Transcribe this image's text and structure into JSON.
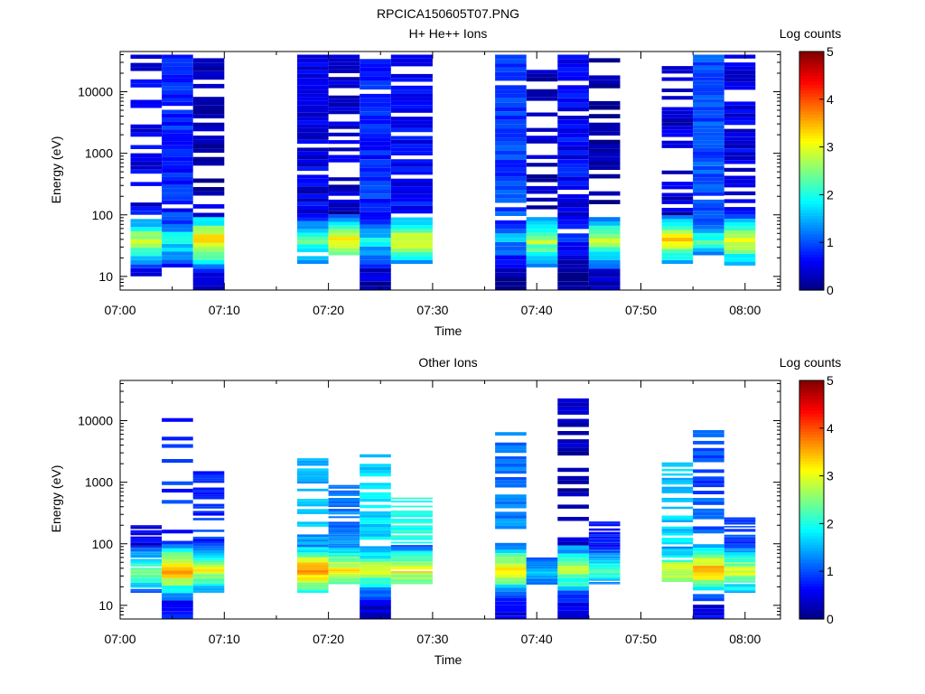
{
  "figure_title": "RPCICA150605T07.PNG",
  "chart_data": [
    {
      "type": "heatmap",
      "title": "H+ He++ Ions",
      "xlabel": "Time",
      "ylabel": "Energy (eV)",
      "x_ticks": [
        "07:00",
        "07:10",
        "07:20",
        "07:30",
        "07:40",
        "07:50",
        "08:00"
      ],
      "y_ticks": [
        "10",
        "100",
        "1000",
        "10000"
      ],
      "y_scale": "log",
      "ylim": [
        6,
        45000
      ],
      "colorbar": {
        "label": "Log counts",
        "ticks": [
          "0",
          "1",
          "2",
          "3",
          "4",
          "5"
        ],
        "range": [
          0,
          5
        ]
      },
      "sweeps": [
        {
          "start": "07:01",
          "end": "07:04",
          "emin": 10,
          "emax": 40000,
          "low_peak": 3.0,
          "high_level": 0.5,
          "fill": 0.6
        },
        {
          "start": "07:04",
          "end": "07:07",
          "emin": 14,
          "emax": 40000,
          "low_peak": 2.0,
          "high_level": 0.8,
          "fill": 0.95
        },
        {
          "start": "07:07",
          "end": "07:10",
          "emin": 6,
          "emax": 35000,
          "low_peak": 3.6,
          "high_level": 0.3,
          "fill": 0.55
        },
        {
          "start": "07:17",
          "end": "07:20",
          "emin": 16,
          "emax": 40000,
          "low_peak": 2.4,
          "high_level": 0.5,
          "fill": 0.85
        },
        {
          "start": "07:20",
          "end": "07:23",
          "emin": 22,
          "emax": 40000,
          "low_peak": 3.4,
          "high_level": 0.4,
          "fill": 0.7
        },
        {
          "start": "07:23",
          "end": "07:26",
          "emin": 6,
          "emax": 40000,
          "low_peak": 1.8,
          "high_level": 0.8,
          "fill": 0.95
        },
        {
          "start": "07:26",
          "end": "07:30",
          "emin": 16,
          "emax": 40000,
          "low_peak": 3.2,
          "high_level": 0.6,
          "fill": 0.8
        },
        {
          "start": "07:36",
          "end": "07:39",
          "emin": 6,
          "emax": 40000,
          "low_peak": 1.5,
          "high_level": 0.9,
          "fill": 0.95
        },
        {
          "start": "07:39",
          "end": "07:42",
          "emin": 14,
          "emax": 35000,
          "low_peak": 2.8,
          "high_level": 0.3,
          "fill": 0.55
        },
        {
          "start": "07:42",
          "end": "07:45",
          "emin": 6,
          "emax": 40000,
          "low_peak": 0.8,
          "high_level": 0.6,
          "fill": 0.9
        },
        {
          "start": "07:45",
          "end": "07:48",
          "emin": 6,
          "emax": 35000,
          "low_peak": 2.8,
          "high_level": 0.2,
          "fill": 0.5
        },
        {
          "start": "07:52",
          "end": "07:55",
          "emin": 16,
          "emax": 30000,
          "low_peak": 3.4,
          "high_level": 0.4,
          "fill": 0.6
        },
        {
          "start": "07:55",
          "end": "07:58",
          "emin": 22,
          "emax": 40000,
          "low_peak": 2.2,
          "high_level": 1.0,
          "fill": 0.95
        },
        {
          "start": "07:58",
          "end": "08:01",
          "emin": 15,
          "emax": 40000,
          "low_peak": 3.2,
          "high_level": 0.5,
          "fill": 0.75
        }
      ]
    },
    {
      "type": "heatmap",
      "title": "Other Ions",
      "xlabel": "Time",
      "ylabel": "Energy (eV)",
      "x_ticks": [
        "07:00",
        "07:10",
        "07:20",
        "07:30",
        "07:40",
        "07:50",
        "08:00"
      ],
      "y_ticks": [
        "10",
        "100",
        "1000",
        "10000"
      ],
      "y_scale": "log",
      "ylim": [
        6,
        45000
      ],
      "colorbar": {
        "label": "Log counts",
        "ticks": [
          "0",
          "1",
          "2",
          "3",
          "4",
          "5"
        ],
        "range": [
          0,
          5
        ]
      },
      "sweeps": [
        {
          "start": "07:01",
          "end": "07:04",
          "emin": 16,
          "emax": 200,
          "low_peak": 2.6,
          "high_level": 0.5,
          "fill": 0.8
        },
        {
          "start": "07:04",
          "end": "07:07",
          "emin": 6,
          "emax": 11000,
          "low_peak": 3.8,
          "high_level": 0.8,
          "fill": 0.45
        },
        {
          "start": "07:07",
          "end": "07:10",
          "emin": 16,
          "emax": 1800,
          "low_peak": 3.0,
          "high_level": 0.8,
          "fill": 0.6
        },
        {
          "start": "07:17",
          "end": "07:20",
          "emin": 16,
          "emax": 2700,
          "low_peak": 4.0,
          "high_level": 1.5,
          "fill": 0.65
        },
        {
          "start": "07:20",
          "end": "07:23",
          "emin": 22,
          "emax": 900,
          "low_peak": 3.4,
          "high_level": 1.2,
          "fill": 0.8
        },
        {
          "start": "07:23",
          "end": "07:26",
          "emin": 6,
          "emax": 3600,
          "low_peak": 3.0,
          "high_level": 1.7,
          "fill": 0.75
        },
        {
          "start": "07:26",
          "end": "07:30",
          "emin": 22,
          "emax": 600,
          "low_peak": 3.2,
          "high_level": 2.0,
          "fill": 0.6
        },
        {
          "start": "07:36",
          "end": "07:39",
          "emin": 6,
          "emax": 6500,
          "low_peak": 3.3,
          "high_level": 1.2,
          "fill": 0.55
        },
        {
          "start": "07:39",
          "end": "07:42",
          "emin": 22,
          "emax": 60,
          "low_peak": 1.6,
          "high_level": 1.0,
          "fill": 1.0
        },
        {
          "start": "07:42",
          "end": "07:45",
          "emin": 6,
          "emax": 23000,
          "low_peak": 3.0,
          "high_level": 0.3,
          "fill": 0.5
        },
        {
          "start": "07:45",
          "end": "07:48",
          "emin": 22,
          "emax": 230,
          "low_peak": 2.2,
          "high_level": 0.7,
          "fill": 0.85
        },
        {
          "start": "07:52",
          "end": "07:55",
          "emin": 24,
          "emax": 2100,
          "low_peak": 3.1,
          "high_level": 1.6,
          "fill": 0.65
        },
        {
          "start": "07:55",
          "end": "07:58",
          "emin": 6,
          "emax": 8000,
          "low_peak": 3.8,
          "high_level": 1.0,
          "fill": 0.6
        },
        {
          "start": "07:58",
          "end": "08:01",
          "emin": 16,
          "emax": 300,
          "low_peak": 3.0,
          "high_level": 0.9,
          "fill": 0.75
        }
      ]
    }
  ]
}
